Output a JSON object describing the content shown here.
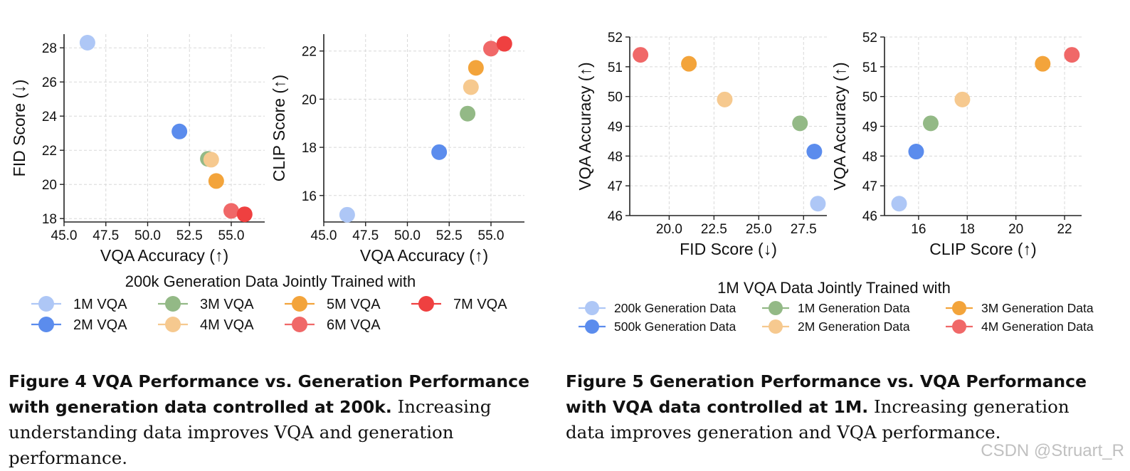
{
  "colors": {
    "1M VQA": "#aec7f6",
    "2M VQA": "#5b8ced",
    "3M VQA": "#93b986",
    "4M VQA": "#f6c98f",
    "5M VQA": "#f3a43b",
    "6M VQA": "#f06868",
    "7M VQA": "#ef4040",
    "200k Generation Data": "#aec7f6",
    "500k Generation Data": "#5b8ced",
    "1M Generation Data": "#93b986",
    "2M Generation Data": "#f6c98f",
    "3M Generation Data": "#f3a43b",
    "4M Generation Data": "#f06868"
  },
  "legend_fig4": {
    "title": "200k Generation Data Jointly Trained with",
    "entries": [
      "1M VQA",
      "2M VQA",
      "3M VQA",
      "4M VQA",
      "5M VQA",
      "6M VQA",
      "7M VQA"
    ]
  },
  "legend_fig5": {
    "title": "1M VQA Data Jointly Trained with",
    "entries": [
      "200k Generation Data",
      "500k Generation Data",
      "1M Generation Data",
      "2M Generation Data",
      "3M Generation Data",
      "4M Generation Data"
    ]
  },
  "chart_data": [
    {
      "type": "scatter",
      "xlabel": "VQA Accuracy (↑)",
      "ylabel": "FID Score (↓)",
      "xlim": [
        45.0,
        57.0
      ],
      "ylim": [
        17.8,
        28.8
      ],
      "xticks": [
        "45.0",
        "47.5",
        "50.0",
        "52.5",
        "55.0"
      ],
      "yticks": [
        "18",
        "20",
        "22",
        "24",
        "26",
        "28"
      ],
      "grid": true,
      "points": [
        {
          "label": "1M VQA",
          "x": 46.4,
          "y": 28.3
        },
        {
          "label": "2M VQA",
          "x": 51.9,
          "y": 23.1
        },
        {
          "label": "3M VQA",
          "x": 53.6,
          "y": 21.5
        },
        {
          "label": "4M VQA",
          "x": 53.8,
          "y": 21.45
        },
        {
          "label": "5M VQA",
          "x": 54.1,
          "y": 20.2
        },
        {
          "label": "6M VQA",
          "x": 55.0,
          "y": 18.45
        },
        {
          "label": "7M VQA",
          "x": 55.8,
          "y": 18.25
        }
      ]
    },
    {
      "type": "scatter",
      "xlabel": "VQA Accuracy (↑)",
      "ylabel": "CLIP Score (↑)",
      "xlim": [
        45.0,
        57.0
      ],
      "ylim": [
        14.9,
        22.7
      ],
      "xticks": [
        "45.0",
        "47.5",
        "50.0",
        "52.5",
        "55.0"
      ],
      "yticks": [
        "16",
        "18",
        "20",
        "22"
      ],
      "grid": true,
      "points": [
        {
          "label": "1M VQA",
          "x": 46.4,
          "y": 15.2
        },
        {
          "label": "2M VQA",
          "x": 51.9,
          "y": 17.8
        },
        {
          "label": "3M VQA",
          "x": 53.6,
          "y": 19.4
        },
        {
          "label": "4M VQA",
          "x": 53.8,
          "y": 20.5
        },
        {
          "label": "5M VQA",
          "x": 54.1,
          "y": 21.3
        },
        {
          "label": "6M VQA",
          "x": 55.0,
          "y": 22.1
        },
        {
          "label": "7M VQA",
          "x": 55.8,
          "y": 22.3
        }
      ]
    },
    {
      "type": "scatter",
      "xlabel": "FID Score (↓)",
      "ylabel": "VQA Accuracy (↑)",
      "xlim": [
        17.8,
        28.8
      ],
      "ylim": [
        46.0,
        52.0
      ],
      "xticks": [
        "20.0",
        "22.5",
        "25.0",
        "27.5"
      ],
      "yticks": [
        "46",
        "47",
        "48",
        "49",
        "50",
        "51",
        "52"
      ],
      "grid": true,
      "points": [
        {
          "label": "200k Generation Data",
          "x": 28.3,
          "y": 46.4
        },
        {
          "label": "500k Generation Data",
          "x": 28.1,
          "y": 48.15
        },
        {
          "label": "1M Generation Data",
          "x": 27.3,
          "y": 49.1
        },
        {
          "label": "2M Generation Data",
          "x": 23.1,
          "y": 49.9
        },
        {
          "label": "3M Generation Data",
          "x": 21.1,
          "y": 51.1
        },
        {
          "label": "4M Generation Data",
          "x": 18.4,
          "y": 51.4
        }
      ]
    },
    {
      "type": "scatter",
      "xlabel": "CLIP Score (↑)",
      "ylabel": "VQA Accuracy (↑)",
      "xlim": [
        14.6,
        22.7
      ],
      "ylim": [
        46.0,
        52.0
      ],
      "xticks": [
        "16",
        "18",
        "20",
        "22"
      ],
      "yticks": [
        "46",
        "47",
        "48",
        "49",
        "50",
        "51",
        "52"
      ],
      "grid": true,
      "points": [
        {
          "label": "200k Generation Data",
          "x": 15.2,
          "y": 46.4
        },
        {
          "label": "500k Generation Data",
          "x": 15.9,
          "y": 48.15
        },
        {
          "label": "1M Generation Data",
          "x": 16.5,
          "y": 49.1
        },
        {
          "label": "2M Generation Data",
          "x": 17.8,
          "y": 49.9
        },
        {
          "label": "3M Generation Data",
          "x": 21.1,
          "y": 51.1
        },
        {
          "label": "4M Generation Data",
          "x": 22.3,
          "y": 51.4
        }
      ]
    }
  ],
  "captions": {
    "fig4_bold": "Figure 4  VQA Performance vs. Generation Performance with generation data controlled at 200k.",
    "fig4_text": " Increasing understanding data improves VQA and generation performance.",
    "fig5_bold": "Figure 5  Generation Performance vs. VQA Performance with VQA data controlled at 1M.",
    "fig5_text": " Increasing generation data improves generation and VQA performance."
  },
  "watermark": "CSDN @Struart_R"
}
